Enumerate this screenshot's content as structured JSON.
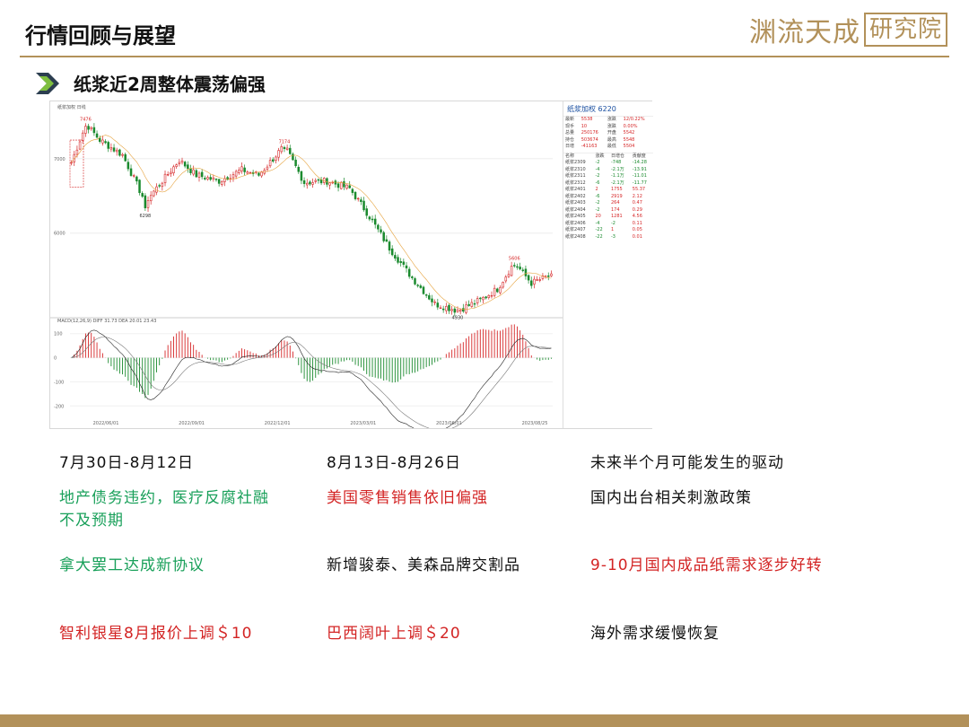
{
  "header": {
    "title": "行情回顾与展望",
    "logo_main": "渊流天成",
    "logo_boxed": "研究院"
  },
  "subtitle": "纸浆近2周整体震荡偏强",
  "colors": {
    "gold": "#b2915a",
    "up": "#d62728",
    "down": "#1a8a2e",
    "green_text": "#19a05a",
    "red_text": "#d32424"
  },
  "chart_data": {
    "type": "candlestick",
    "title": "纸浆加权 6220",
    "header_labels": [
      "纸浆加权",
      "日线"
    ],
    "price_ticks": [
      "7000",
      "6000"
    ],
    "price_range": [
      4900,
      7600
    ],
    "annotations": [
      {
        "label": "7476",
        "i": 5,
        "v": 7476,
        "pos": "high"
      },
      {
        "label": "7174",
        "i": 75,
        "v": 7174,
        "pos": "high"
      },
      {
        "label": "6298",
        "i": 26,
        "v": 6298,
        "pos": "low"
      },
      {
        "label": "5606",
        "i": 156,
        "v": 5606,
        "pos": "high"
      },
      {
        "label": "4930",
        "i": 136,
        "v": 4930,
        "pos": "low"
      }
    ],
    "close_anchors": [
      [
        0,
        6950
      ],
      [
        4,
        7350
      ],
      [
        5,
        7476
      ],
      [
        10,
        7250
      ],
      [
        18,
        7050
      ],
      [
        26,
        6420
      ],
      [
        32,
        6700
      ],
      [
        38,
        6980
      ],
      [
        44,
        6780
      ],
      [
        52,
        6700
      ],
      [
        60,
        6850
      ],
      [
        66,
        6780
      ],
      [
        75,
        7174
      ],
      [
        82,
        6680
      ],
      [
        90,
        6700
      ],
      [
        98,
        6600
      ],
      [
        104,
        6280
      ],
      [
        112,
        5800
      ],
      [
        120,
        5400
      ],
      [
        128,
        5050
      ],
      [
        136,
        4960
      ],
      [
        144,
        5100
      ],
      [
        150,
        5250
      ],
      [
        156,
        5606
      ],
      [
        162,
        5330
      ],
      [
        168,
        5420
      ]
    ],
    "macd": {
      "label": "MACD(12,26,9)",
      "diff_label": "DIFF",
      "diff_value": "31.73",
      "dea_label": "DEA",
      "dea_value": "20.01",
      "macd_value": "23.43",
      "ticks": [
        "100",
        "0",
        "-100",
        "-200"
      ],
      "range": [
        -240,
        140
      ]
    },
    "x_dates": [
      "2022/06/01",
      "2022/09/01",
      "2022/12/01",
      "2023/03/01",
      "2023/06/01",
      "2023/08/25"
    ]
  },
  "quote_panel": {
    "title": "纸浆加权  6220",
    "summary": [
      [
        "最新",
        "5538",
        "涨跌",
        "12/0.22%"
      ],
      [
        "现手",
        "10",
        "涨跌",
        "0.00%"
      ],
      [
        "总量",
        "250176",
        "开盘",
        "5542"
      ],
      [
        "持仓",
        "503674",
        "最高",
        "5548"
      ],
      [
        "日增",
        "-41163",
        "最低",
        "5504"
      ]
    ],
    "headers": [
      "名称",
      "涨跌",
      "日增仓",
      "贡献度"
    ],
    "rows": [
      [
        "纸浆2309",
        "-2",
        "-748",
        "-14.28"
      ],
      [
        "纸浆2310",
        "-4",
        "-2.1万",
        "-13.91"
      ],
      [
        "纸浆2311",
        "-2",
        "-1.1万",
        "-11.01"
      ],
      [
        "纸浆2312",
        "-6",
        "-2.1万",
        "-11.77"
      ],
      [
        "纸浆2401",
        "2",
        "1755",
        "55.37"
      ],
      [
        "纸浆2402",
        "-6",
        "2919",
        "2.12"
      ],
      [
        "纸浆2403",
        "-2",
        "264",
        "0.47"
      ],
      [
        "纸浆2404",
        "-2",
        "174",
        "0.29"
      ],
      [
        "纸浆2405",
        "20",
        "1281",
        "4.56"
      ],
      [
        "纸浆2406",
        "-4",
        "-2",
        "0.11"
      ],
      [
        "纸浆2407",
        "-22",
        "1",
        "0.05"
      ],
      [
        "纸浆2408",
        "-22",
        "-3",
        "0.01"
      ]
    ]
  },
  "grid": {
    "columns": [
      {
        "header": "7月30日-8月12日",
        "items": [
          {
            "text": "地产债务违约，医疗反腐社融不及预期",
            "color": "green"
          },
          {
            "text": "拿大罢工达成新协议",
            "color": "green"
          },
          {
            "text": "智利银星8月报价上调＄10",
            "color": "red"
          }
        ]
      },
      {
        "header": "8月13日-8月26日",
        "items": [
          {
            "text": "美国零售销售依旧偏强",
            "color": "red"
          },
          {
            "text": "新增骏泰、美森品牌交割品",
            "color": "black"
          },
          {
            "text": "巴西阔叶上调＄20",
            "color": "red"
          }
        ]
      },
      {
        "header": "未来半个月可能发生的驱动",
        "items": [
          {
            "text": "国内出台相关刺激政策",
            "color": "black"
          },
          {
            "text": "9-10月国内成品纸需求逐步好转",
            "color": "red"
          },
          {
            "text": "海外需求缓慢恢复",
            "color": "black"
          }
        ]
      }
    ]
  }
}
